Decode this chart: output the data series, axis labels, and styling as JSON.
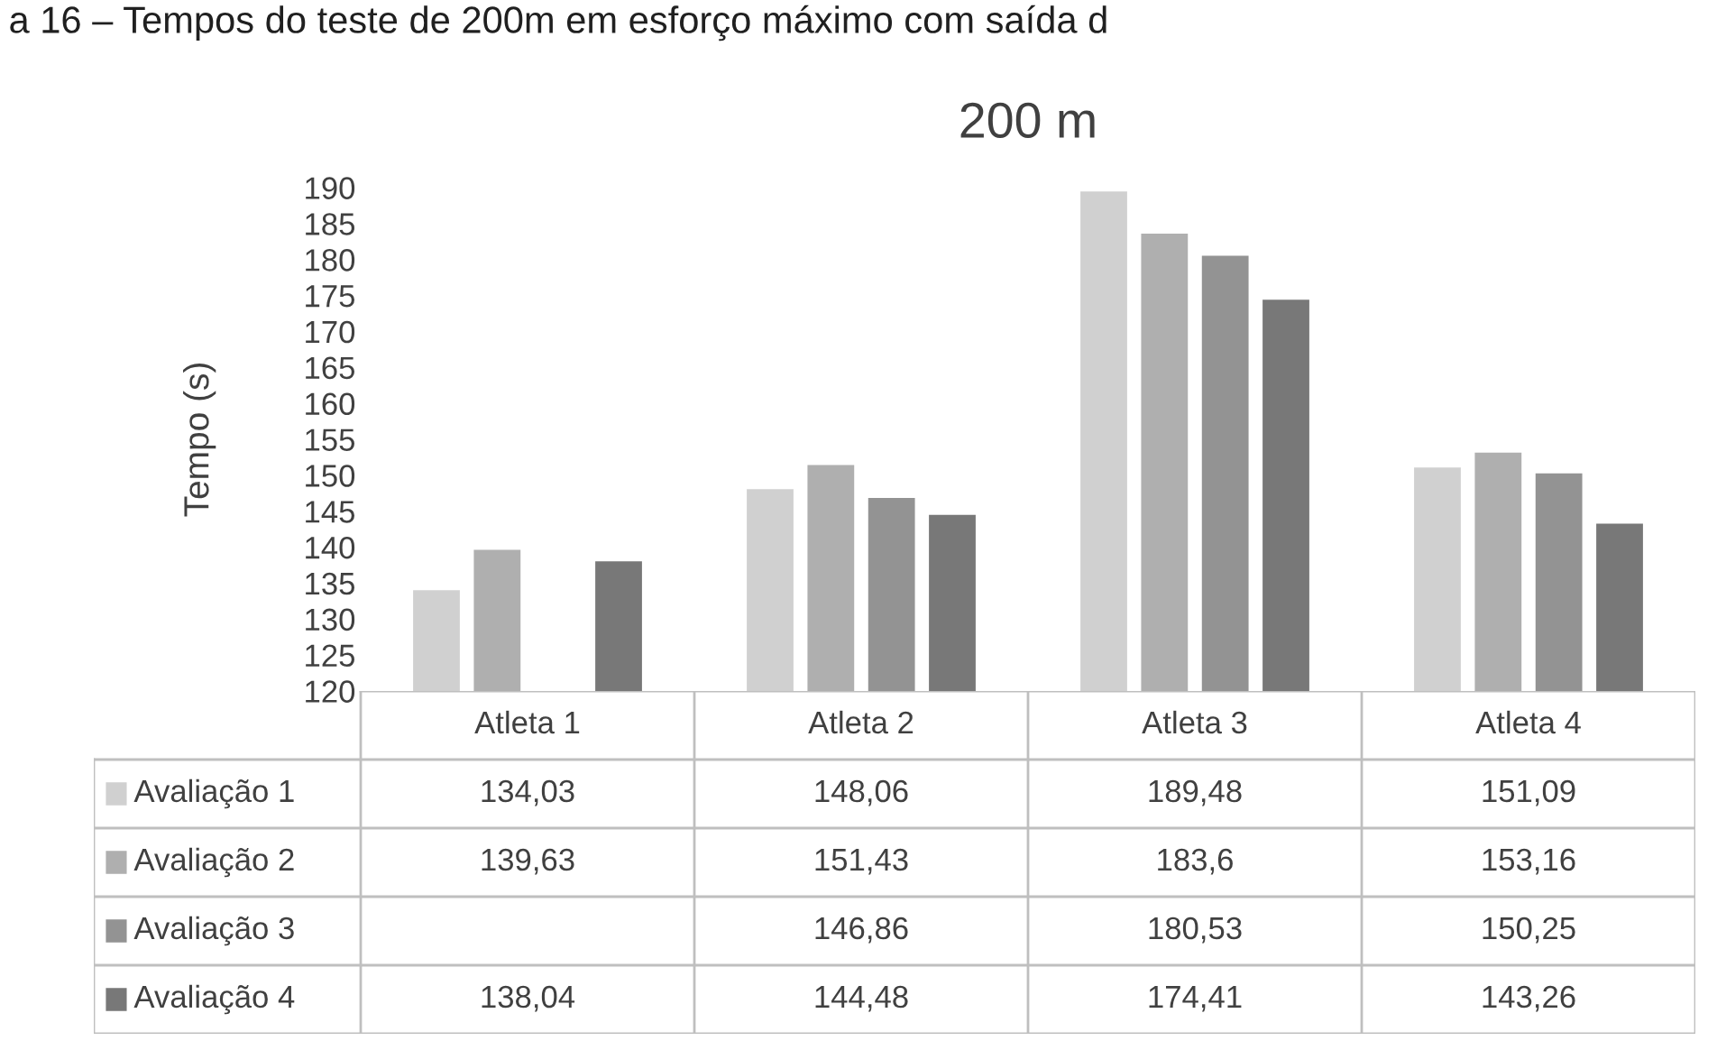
{
  "chart_data": {
    "type": "bar",
    "title": "200 m",
    "ylabel": "Tempo (s)",
    "annotations": [
      "a 16 – Tempos do teste de 200m em esforço máximo com saída d"
    ],
    "categories": [
      "Atleta 1",
      "Atleta 2",
      "Atleta 3",
      "Atleta 4"
    ],
    "series": [
      {
        "name": "Avaliação 1",
        "color": "#d0d0d0",
        "values": [
          134.03,
          148.06,
          189.48,
          151.09
        ],
        "value_labels": [
          "134,03",
          "148,06",
          "189,48",
          "151,09"
        ]
      },
      {
        "name": "Avaliação 2",
        "color": "#afafaf",
        "values": [
          139.63,
          151.43,
          183.6,
          153.16
        ],
        "value_labels": [
          "139,63",
          "151,43",
          "183,6",
          "153,16"
        ]
      },
      {
        "name": "Avaliação 3",
        "color": "#939393",
        "values": [
          null,
          146.86,
          180.53,
          150.25
        ],
        "value_labels": [
          null,
          "146,86",
          "180,53",
          "150,25"
        ]
      },
      {
        "name": "Avaliação 4",
        "color": "#787878",
        "values": [
          138.04,
          144.48,
          174.41,
          143.26
        ],
        "value_labels": [
          "138,04",
          "144,48",
          "174,41",
          "143,26"
        ]
      }
    ],
    "legend": "bottom",
    "ylim": [
      120,
      190
    ],
    "yticks": [
      120,
      125,
      130,
      135,
      140,
      145,
      150,
      155,
      160,
      165,
      170,
      175,
      180,
      185,
      190
    ]
  }
}
